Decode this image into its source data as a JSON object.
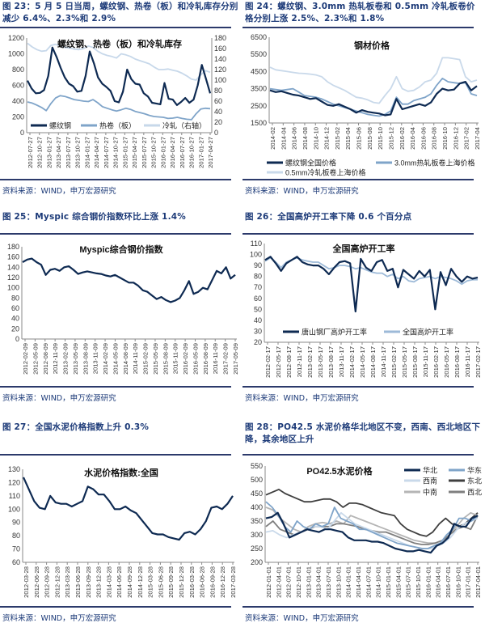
{
  "panels": [
    {
      "caption": "图 23：5 月 5 日当周，螺纹钢、热卷（板）和冷轧库存分别减少 6.4%、2.3%和 2.9%",
      "source": "资料来源：WIND，申万宏源研究"
    },
    {
      "caption": "图 24：螺纹钢、3.0mm 热轧板卷和 0.5mm 冷轧板卷价格分别上涨 2.5%、2.3%和 1.8%",
      "source": "资料来源：WIND，申万宏源研究"
    },
    {
      "caption": "图 25：Myspic 综合钢价指数环比上涨 1.4%",
      "source": "资料来源：WIND，申万宏源研究"
    },
    {
      "caption": "图 26：全国高炉开工率下降 0.6 个百分点",
      "source": "资料来源：WIND，申万宏源研究"
    },
    {
      "caption": "图 27：全国水泥价格指数上升 0.3%",
      "source": "资料来源：WIND，申万宏源研究"
    },
    {
      "caption": "图 28：PO42.5 水泥价格华北地区不变，西南、西北地区下降，其余地区上升",
      "source": "资料来源：WIND，申万宏源研究"
    }
  ],
  "chart_data": [
    {
      "type": "line",
      "title": "螺纹钢、热卷（板）和冷轧库存",
      "ylim": [
        0,
        1200
      ],
      "yticks": [
        0,
        200,
        400,
        600,
        800,
        1000,
        1200
      ],
      "y2lim": [
        0,
        180
      ],
      "y2ticks": [
        0,
        20,
        40,
        60,
        80,
        100,
        120,
        140,
        160,
        180
      ],
      "xticks": [
        "2012-07-27",
        "2012-10-27",
        "2013-01-27",
        "2013-04-27",
        "2013-07-27",
        "2013-10-27",
        "2014-01-27",
        "2014-04-27",
        "2014-07-27",
        "2014-10-27",
        "2015-01-27",
        "2015-04-27",
        "2015-07-27",
        "2015-10-27",
        "2016-01-27",
        "2016-04-27",
        "2016-07-27",
        "2016-10-27",
        "2017-01-27",
        "2017-04-27"
      ],
      "series": [
        {
          "name": "冷轧（右轴）",
          "axis": "right",
          "color": "#c7d8ea",
          "values": [
            170,
            163,
            158,
            155,
            156,
            166,
            168,
            165,
            162,
            161,
            159,
            158,
            160,
            165,
            162,
            155,
            150,
            147,
            145,
            142,
            150,
            148,
            145,
            140,
            137,
            134,
            131,
            125,
            120,
            120,
            121,
            119,
            117,
            113,
            108,
            102,
            100,
            110,
            118,
            115
          ]
        },
        {
          "name": "热卷（板）",
          "axis": "left",
          "color": "#7fa4c9",
          "values": [
            390,
            375,
            350,
            320,
            280,
            370,
            440,
            470,
            460,
            440,
            420,
            410,
            400,
            395,
            420,
            380,
            330,
            310,
            290,
            275,
            290,
            310,
            295,
            270,
            255,
            240,
            220,
            205,
            200,
            195,
            180,
            185,
            195,
            180,
            170,
            165,
            240,
            300,
            310,
            305
          ]
        },
        {
          "name": "螺纹钢",
          "axis": "left",
          "color": "#0e2a52",
          "values": [
            660,
            560,
            500,
            505,
            540,
            720,
            1080,
            960,
            820,
            700,
            620,
            590,
            520,
            530,
            720,
            1030,
            880,
            700,
            620,
            580,
            530,
            400,
            385,
            520,
            800,
            680,
            620,
            610,
            500,
            460,
            380,
            370,
            360,
            630,
            430,
            420,
            350,
            390,
            440,
            380,
            420,
            600,
            860,
            680,
            500
          ]
        }
      ]
    },
    {
      "type": "line",
      "title": "钢材价格",
      "ylim": [
        1500,
        6500
      ],
      "yticks": [
        1500,
        2500,
        3500,
        4500,
        5500,
        6500
      ],
      "xticks": [
        "2014-02",
        "2014-04",
        "2014-06",
        "2014-08",
        "2014-10",
        "2014-12",
        "2015-02",
        "2015-04",
        "2015-06",
        "2015-08",
        "2015-10",
        "2015-12",
        "2016-02",
        "2016-04",
        "2016-06",
        "2016-08",
        "2016-10",
        "2016-12",
        "2017-02",
        "2017-04"
      ],
      "series": [
        {
          "name": "0.5mm冷轧板卷上海价格",
          "color": "#c9d9ea",
          "values": [
            4750,
            4600,
            4550,
            4500,
            4450,
            4400,
            4380,
            4350,
            4300,
            4200,
            3900,
            3700,
            3550,
            3400,
            3200,
            3000,
            2950,
            2850,
            2700,
            2650,
            3100,
            3500,
            4200,
            3500,
            3350,
            3400,
            3600,
            3900,
            4000,
            4400,
            5300,
            5300,
            5250,
            5200,
            4200,
            3900,
            4000
          ]
        },
        {
          "name": "3.0mm热轧板卷上海价格",
          "color": "#7fa4c9",
          "values": [
            3500,
            3450,
            3400,
            3450,
            3500,
            3300,
            3100,
            3050,
            3000,
            2900,
            2750,
            2600,
            2500,
            2400,
            2300,
            2200,
            2100,
            2000,
            1950,
            1900,
            2000,
            2200,
            3000,
            2600,
            2600,
            2800,
            2900,
            3000,
            3200,
            3700,
            4100,
            3900,
            3850,
            3800,
            3850,
            3200,
            3100
          ]
        },
        {
          "name": "螺纹钢全国价格",
          "color": "#0e2a52",
          "values": [
            3400,
            3300,
            3350,
            3250,
            3150,
            3100,
            3000,
            2900,
            2950,
            2750,
            2550,
            2500,
            2600,
            2450,
            2300,
            2100,
            2250,
            2150,
            2100,
            2050,
            1950,
            2000,
            2900,
            2300,
            2400,
            2500,
            2600,
            2500,
            2700,
            3200,
            3500,
            3400,
            3450,
            3800,
            3900,
            3400,
            3650
          ]
        }
      ]
    },
    {
      "type": "line",
      "title": "Myspic综合钢价指数",
      "ylim": [
        0,
        180
      ],
      "yticks": [
        0,
        20,
        40,
        60,
        80,
        100,
        120,
        140,
        160,
        180
      ],
      "xticks": [
        "2012-02-09",
        "2012-05-09",
        "2012-08-09",
        "2012-11-09",
        "2013-02-09",
        "2013-05-09",
        "2013-08-09",
        "2013-11-09",
        "2014-02-09",
        "2014-05-09",
        "2014-08-09",
        "2014-11-09",
        "2015-02-09",
        "2015-05-09",
        "2015-08-09",
        "2015-11-09",
        "2016-02-09",
        "2016-05-09",
        "2016-08-09",
        "2016-11-09",
        "2017-02-09",
        "2017-05-09"
      ],
      "series": [
        {
          "name": "Myspic综合钢价指数",
          "color": "#0e2a52",
          "values": [
            150,
            155,
            157,
            150,
            145,
            125,
            135,
            137,
            133,
            140,
            142,
            135,
            127,
            130,
            132,
            130,
            128,
            127,
            124,
            122,
            125,
            120,
            115,
            110,
            110,
            104,
            95,
            92,
            85,
            78,
            82,
            76,
            72,
            75,
            80,
            95,
            113,
            88,
            92,
            100,
            97,
            115,
            133,
            128,
            140,
            118,
            125
          ]
        }
      ]
    },
    {
      "type": "line",
      "title": "全国高炉开工率",
      "ylim": [
        20,
        110
      ],
      "yticks": [
        20,
        30,
        40,
        50,
        60,
        70,
        80,
        90,
        100,
        110
      ],
      "xticks": [
        "2012-02-17",
        "2012-05-17",
        "2012-08-17",
        "2012-11-17",
        "2013-02-17",
        "2013-05-17",
        "2013-08-17",
        "2013-11-17",
        "2014-02-17",
        "2014-05-17",
        "2014-08-17",
        "2014-11-17",
        "2015-02-17",
        "2015-05-17",
        "2015-08-17",
        "2015-11-17",
        "2016-02-17",
        "2016-05-17",
        "2016-08-17",
        "2016-11-17",
        "2017-02-17"
      ],
      "series": [
        {
          "name": "全国高炉开工率",
          "color": "#9dbad8",
          "values": [
            94,
            97,
            93,
            88,
            93,
            95,
            97,
            95,
            94,
            93,
            93,
            90,
            87,
            88,
            90,
            90,
            89,
            87,
            88,
            86,
            84,
            83,
            83,
            80,
            82,
            78,
            80,
            76,
            75,
            78,
            79,
            80,
            78,
            80,
            79,
            78,
            76,
            73,
            76,
            77,
            77
          ]
        },
        {
          "name": "唐山钢厂高炉开工率",
          "color": "#0e2a52",
          "values": [
            95,
            98,
            92,
            85,
            92,
            95,
            98,
            93,
            91,
            90,
            90,
            87,
            82,
            88,
            93,
            94,
            92,
            48,
            96,
            88,
            85,
            93,
            95,
            85,
            87,
            70,
            86,
            82,
            78,
            85,
            80,
            86,
            50,
            84,
            72,
            87,
            80,
            75,
            80,
            78,
            79
          ]
        }
      ]
    },
    {
      "type": "line",
      "title": "水泥价格指数:全国",
      "ylim": [
        60,
        130
      ],
      "yticks": [
        60,
        70,
        80,
        90,
        100,
        110,
        120,
        130
      ],
      "xticks": [
        "2012-03-28",
        "2012-06-28",
        "2012-09-28",
        "2012-12-28",
        "2013-03-28",
        "2013-06-28",
        "2013-09-28",
        "2013-12-28",
        "2014-03-28",
        "2014-06-28",
        "2014-09-28",
        "2014-12-28",
        "2015-03-28",
        "2015-06-28",
        "2015-09-28",
        "2015-12-28",
        "2016-03-28",
        "2016-06-28",
        "2016-09-28",
        "2016-12-28",
        "2017-03-28"
      ],
      "series": [
        {
          "name": "水泥价格指数:全国",
          "color": "#0e2a52",
          "values": [
            124,
            115,
            106,
            101,
            100,
            110,
            105,
            104,
            104,
            102,
            104,
            106,
            117,
            115,
            111,
            111,
            106,
            100,
            100,
            102,
            99,
            97,
            92,
            87,
            82,
            81,
            81,
            79,
            78,
            77,
            82,
            83,
            81,
            85,
            91,
            101,
            102,
            100,
            104,
            110
          ]
        }
      ]
    },
    {
      "type": "line",
      "title": "PO42.5水泥价格",
      "ylim": [
        200,
        550
      ],
      "yticks": [
        200,
        250,
        300,
        350,
        400,
        450,
        500,
        550
      ],
      "xticks": [
        "2012-01-01",
        "2012-04-01",
        "2012-07-01",
        "2012-10-01",
        "2013-01-01",
        "2013-04-01",
        "2013-07-01",
        "2013-10-01",
        "2014-01-01",
        "2014-04-01",
        "2014-07-01",
        "2014-10-01",
        "2015-01-01",
        "2015-04-01",
        "2015-07-01",
        "2015-10-01",
        "2016-01-01",
        "2016-04-01",
        "2016-07-01",
        "2016-10-01",
        "2017-01-01",
        "2017-04-01"
      ],
      "series": [
        {
          "name": "东北",
          "color": "#3f3f3f",
          "values": [
            445,
            455,
            465,
            450,
            440,
            430,
            420,
            420,
            425,
            430,
            430,
            420,
            400,
            415,
            415,
            410,
            400,
            390,
            380,
            375,
            370,
            340,
            320,
            310,
            300,
            295,
            310,
            340,
            360,
            340,
            330,
            340,
            360,
            380
          ]
        },
        {
          "name": "中南",
          "color": "#b5b5b5",
          "values": [
            400,
            390,
            360,
            340,
            320,
            310,
            330,
            340,
            345,
            340,
            350,
            340,
            370,
            360,
            350,
            340,
            330,
            320,
            310,
            300,
            290,
            280,
            275,
            270,
            270,
            280,
            300,
            330,
            360,
            380,
            370
          ]
        },
        {
          "name": "西北",
          "color": "#7f7f7f",
          "values": [
            330,
            350,
            320,
            310,
            300,
            310,
            320,
            330,
            330,
            330,
            340,
            340,
            335,
            330,
            320,
            315,
            310,
            310,
            300,
            290,
            280,
            270,
            265,
            265,
            270,
            280,
            300,
            320,
            330,
            320,
            370
          ]
        },
        {
          "name": "西南",
          "color": "#c9d9ea",
          "values": [
            310,
            315,
            300,
            290,
            300,
            310,
            320,
            330,
            330,
            320,
            350,
            380,
            360,
            340,
            330,
            320,
            310,
            300,
            290,
            280,
            270,
            260,
            255,
            250,
            250,
            260,
            270,
            290,
            320,
            340,
            350,
            360
          ]
        },
        {
          "name": "华东",
          "color": "#7fa4c9",
          "values": [
            420,
            400,
            370,
            330,
            310,
            350,
            330,
            320,
            340,
            330,
            340,
            400,
            360,
            350,
            340,
            320,
            320,
            310,
            300,
            290,
            280,
            270,
            265,
            260,
            255,
            250,
            250,
            260,
            270,
            300,
            320,
            360,
            360,
            350,
            370
          ]
        },
        {
          "name": "华北",
          "color": "#0e2a52",
          "values": [
            360,
            365,
            380,
            340,
            290,
            300,
            310,
            320,
            315,
            310,
            320,
            320,
            315,
            310,
            290,
            280,
            280,
            280,
            275,
            275,
            270,
            260,
            250,
            245,
            240,
            240,
            245,
            240,
            235,
            260,
            270,
            290,
            340,
            330,
            330,
            360,
            370
          ]
        }
      ]
    }
  ]
}
